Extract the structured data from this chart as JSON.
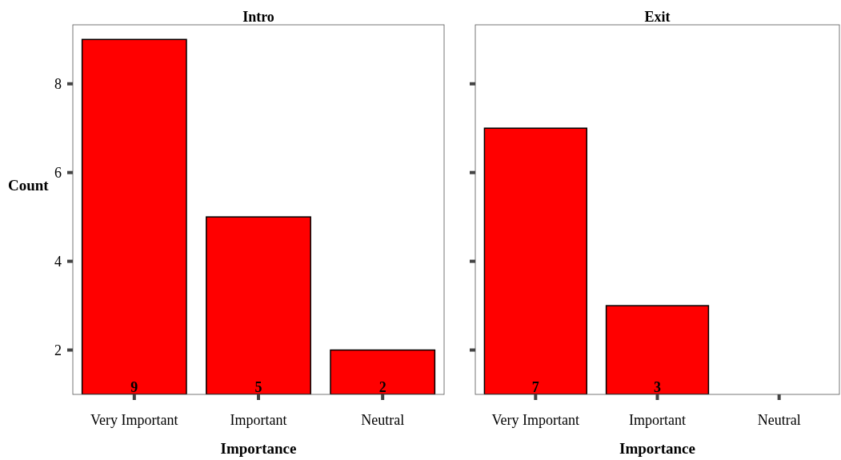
{
  "chart_data": [
    {
      "type": "bar",
      "title": "Intro",
      "xlabel": "Importance",
      "ylabel": "Count",
      "categories": [
        "Very Important",
        "Important",
        "Neutral"
      ],
      "values": [
        9,
        5,
        2
      ],
      "color": "#ff0000",
      "ylim": [
        1,
        9.33
      ],
      "yticks": [
        2,
        4,
        6,
        8
      ],
      "data_labels": true,
      "grid": false
    },
    {
      "type": "bar",
      "title": "Exit",
      "xlabel": "Importance",
      "categories": [
        "Very Important",
        "Important",
        "Neutral"
      ],
      "values": [
        7,
        3,
        null
      ],
      "color": "#ff0000",
      "ylim": [
        1,
        9.33
      ],
      "yticks": [
        2,
        4,
        6,
        8
      ],
      "data_labels": true,
      "grid": false,
      "tick_labels": "x"
    }
  ]
}
